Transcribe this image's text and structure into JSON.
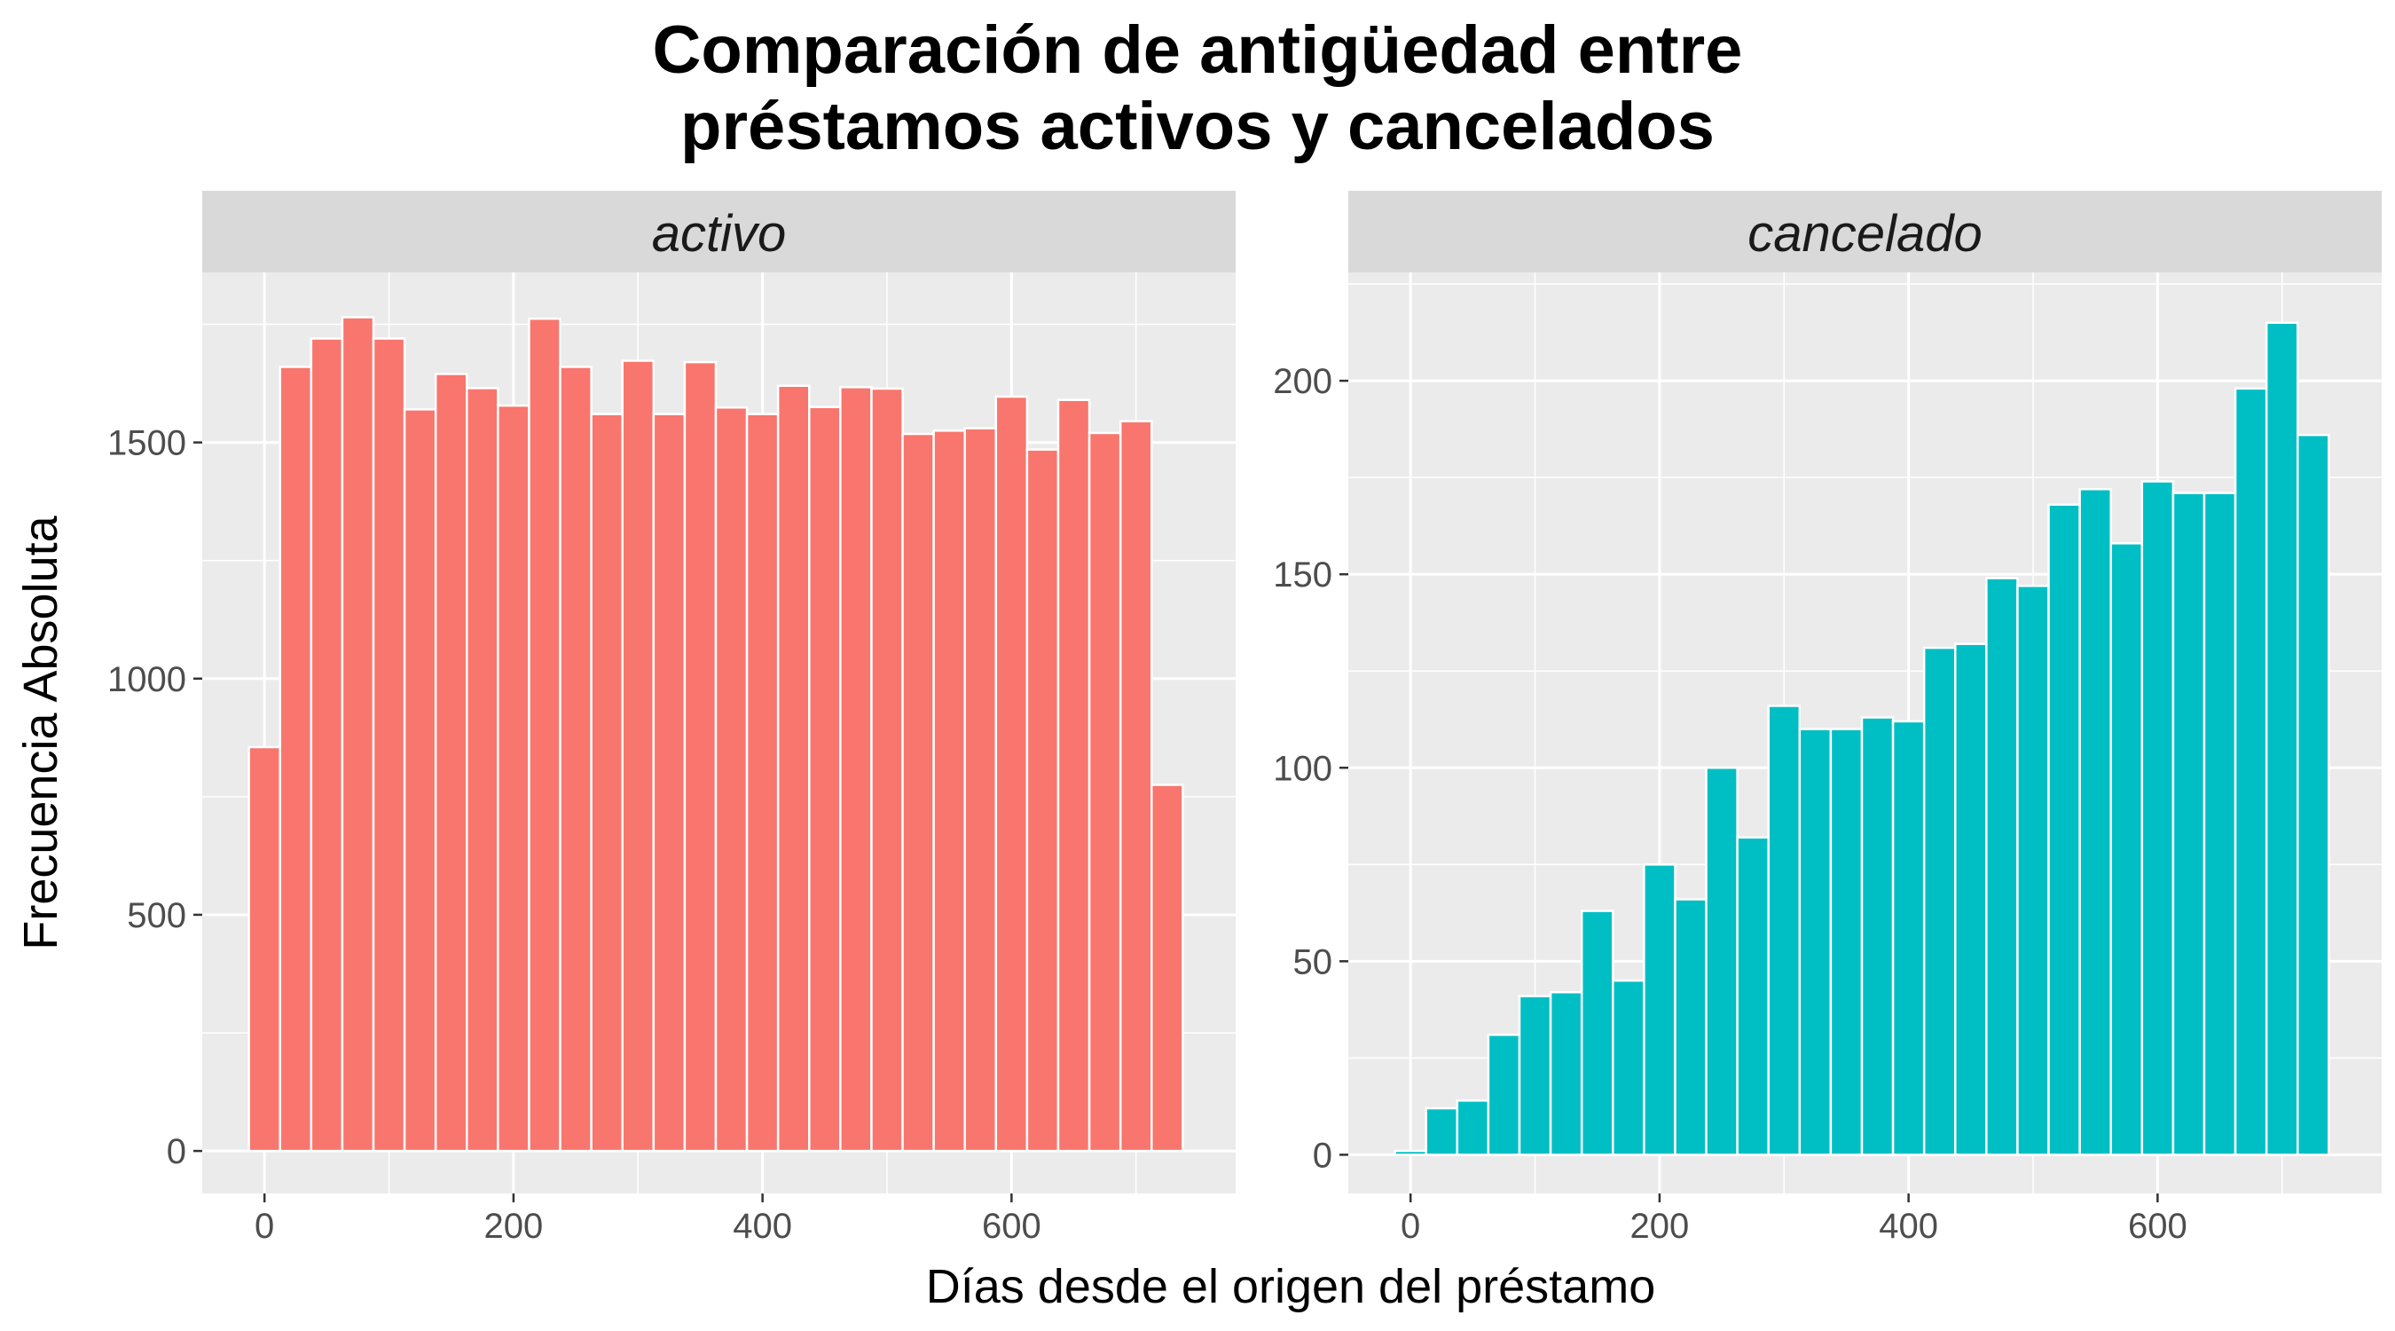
{
  "chart_data": {
    "type": "bar",
    "title": "Comparación de antigüedad entre\npréstamos activos y cancelados",
    "xlabel": "Días desde el origen del préstamo",
    "ylabel": "Frecuencia Absoluta",
    "grid": true,
    "legend": "none",
    "bin_width": 25,
    "panels": [
      {
        "name": "activo",
        "color": "#F8766D",
        "xlim": [
          -50,
          780
        ],
        "ylim": [
          -90,
          1860
        ],
        "x_ticks": [
          0,
          200,
          400,
          600
        ],
        "y_ticks": [
          0,
          500,
          1000,
          1500
        ],
        "x": [
          0,
          25,
          50,
          75,
          100,
          125,
          150,
          175,
          200,
          225,
          250,
          275,
          300,
          325,
          350,
          375,
          400,
          425,
          450,
          475,
          500,
          525,
          550,
          575,
          600,
          625,
          650,
          675,
          700,
          725
        ],
        "values": [
          855,
          1660,
          1720,
          1765,
          1720,
          1570,
          1645,
          1615,
          1578,
          1762,
          1660,
          1560,
          1673,
          1560,
          1670,
          1574,
          1560,
          1620,
          1575,
          1617,
          1614,
          1518,
          1525,
          1530,
          1597,
          1485,
          1590,
          1520,
          1545,
          775
        ]
      },
      {
        "name": "cancelado",
        "color": "#00BFC4",
        "xlim": [
          -50,
          780
        ],
        "ylim": [
          -10,
          228
        ],
        "x_ticks": [
          0,
          200,
          400,
          600
        ],
        "y_ticks": [
          0,
          50,
          100,
          150,
          200
        ],
        "x": [
          0,
          25,
          50,
          75,
          100,
          125,
          150,
          175,
          200,
          225,
          250,
          275,
          300,
          325,
          350,
          375,
          400,
          425,
          450,
          475,
          500,
          525,
          550,
          575,
          600,
          625,
          650,
          675,
          700,
          725
        ],
        "values": [
          1,
          12,
          14,
          31,
          41,
          42,
          63,
          45,
          75,
          66,
          100,
          82,
          116,
          110,
          110,
          113,
          112,
          131,
          132,
          149,
          147,
          168,
          172,
          158,
          174,
          171,
          171,
          198,
          215,
          186
        ]
      }
    ]
  }
}
